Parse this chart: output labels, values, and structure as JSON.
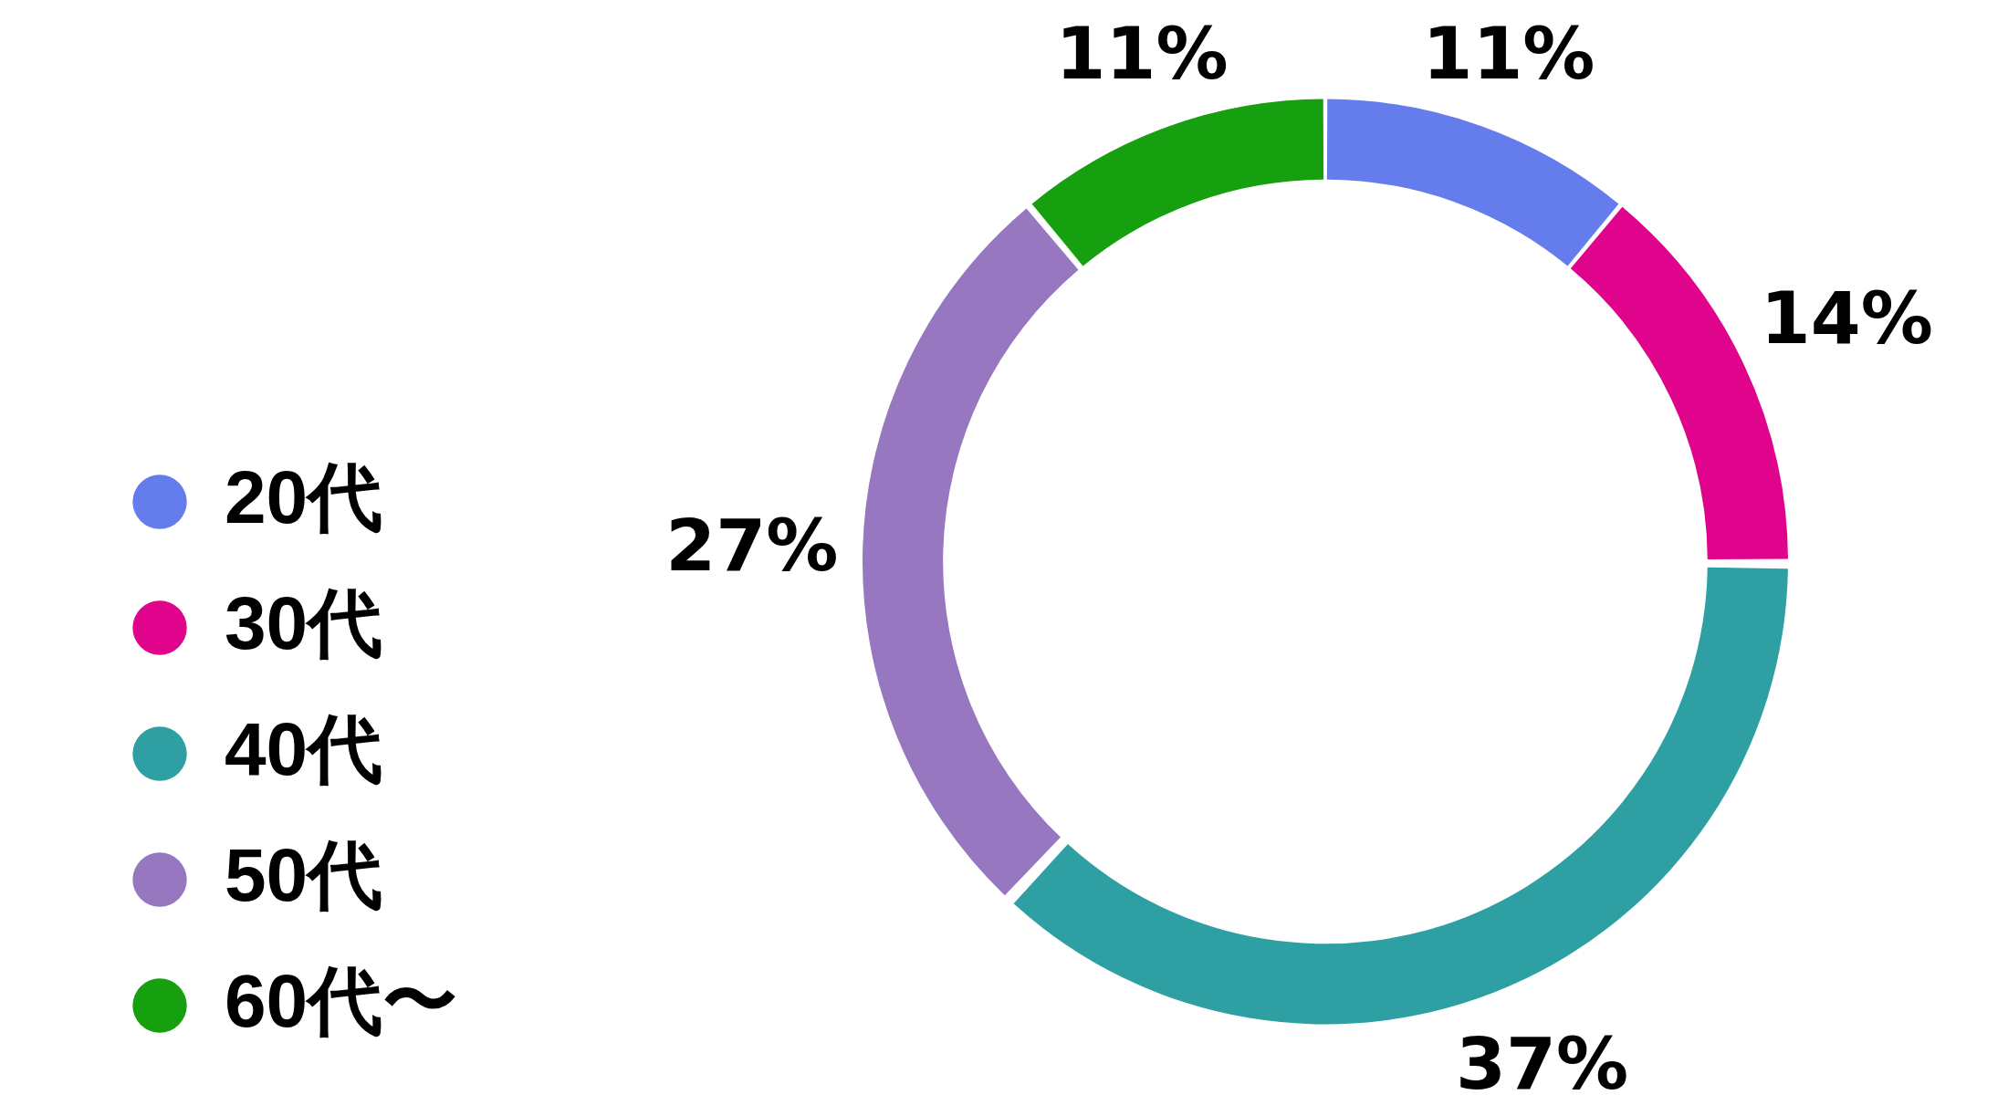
{
  "chart_data": {
    "type": "donut",
    "categories": [
      "20代",
      "30代",
      "40代",
      "50代",
      "60代〜"
    ],
    "values": [
      11,
      14,
      37,
      27,
      11
    ],
    "colors": [
      "#657dec",
      "#e0038c",
      "#2ea0a3",
      "#9677c0",
      "#16a00f"
    ],
    "value_labels": [
      "11%",
      "14%",
      "37%",
      "27%",
      "11%"
    ],
    "legend": "left"
  }
}
